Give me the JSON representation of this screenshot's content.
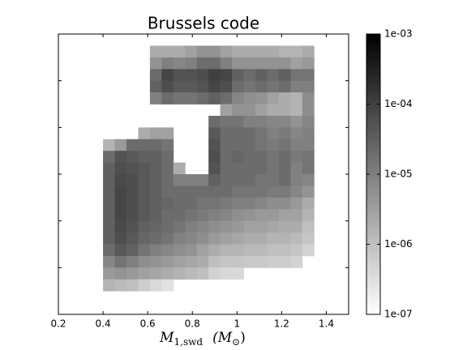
{
  "chart_data": {
    "type": "heatmap",
    "title": "Brussels code",
    "xlabel": [
      "M",
      "1,swd",
      "(M",
      "⊙",
      ")"
    ],
    "x_edges": [
      0.4,
      0.4525,
      0.505,
      0.5575,
      0.61,
      0.6625,
      0.715,
      0.7675,
      0.82,
      0.8725,
      0.925,
      0.9775,
      1.03,
      1.0825,
      1.135,
      1.1875,
      1.24,
      1.2925,
      1.345
    ],
    "y_edges": [
      23,
      22,
      21,
      20,
      19,
      18,
      17,
      16,
      15,
      14,
      13,
      12,
      11,
      10,
      9,
      8,
      7,
      6,
      5,
      4,
      3,
      2
    ],
    "z": [
      [
        null,
        null,
        null,
        null,
        2e-06,
        2e-06,
        2e-06,
        3e-06,
        5e-06,
        5e-06,
        3e-06,
        2e-06,
        2e-06,
        2e-06,
        2e-06,
        1.5e-06,
        1.5e-06,
        2e-06
      ],
      [
        null,
        null,
        null,
        null,
        5e-06,
        1e-05,
        8e-06,
        1e-05,
        2e-05,
        2e-05,
        1e-05,
        5e-06,
        5e-06,
        5e-06,
        5e-06,
        5e-06,
        3e-06,
        4e-06
      ],
      [
        null,
        null,
        null,
        null,
        2e-05,
        8e-05,
        5e-05,
        5e-05,
        6e-05,
        0.0001,
        8e-05,
        3e-05,
        2e-05,
        3e-05,
        2e-05,
        3e-05,
        1.5e-05,
        1.5e-05
      ],
      [
        null,
        null,
        null,
        null,
        3e-05,
        6e-05,
        4e-05,
        4e-05,
        5e-05,
        8e-05,
        6e-05,
        2e-05,
        1.5e-05,
        2e-05,
        1.5e-05,
        2e-05,
        1e-05,
        1e-05
      ],
      [
        null,
        null,
        null,
        null,
        1e-05,
        2e-05,
        1.5e-05,
        1.5e-05,
        2e-05,
        3e-05,
        2e-05,
        8e-06,
        6e-06,
        5e-06,
        3e-06,
        2e-06,
        1.5e-06,
        6e-06
      ],
      [
        null,
        null,
        null,
        null,
        null,
        null,
        null,
        null,
        null,
        null,
        3e-06,
        5e-06,
        5e-06,
        3e-06,
        2e-06,
        2e-06,
        1.5e-06,
        6e-06
      ],
      [
        null,
        null,
        null,
        null,
        null,
        null,
        null,
        null,
        null,
        2e-05,
        1.5e-05,
        1.5e-05,
        1e-05,
        1e-05,
        8e-06,
        8e-06,
        5e-06,
        8e-06
      ],
      [
        null,
        null,
        null,
        2e-06,
        3e-06,
        3e-06,
        null,
        null,
        null,
        4e-05,
        2e-05,
        2e-05,
        2e-05,
        1.5e-05,
        1e-05,
        1.2e-05,
        8e-06,
        1e-05
      ],
      [
        1.5e-06,
        4e-06,
        2e-05,
        2e-05,
        2e-05,
        1.5e-05,
        null,
        null,
        null,
        5e-05,
        2e-05,
        2e-05,
        2e-05,
        1.5e-05,
        1.2e-05,
        1.5e-05,
        1e-05,
        1e-05
      ],
      [
        2e-05,
        5e-05,
        4e-05,
        3e-05,
        3e-05,
        2e-05,
        null,
        null,
        null,
        6e-05,
        2e-05,
        2.5e-05,
        2e-05,
        2e-05,
        1.5e-05,
        2e-05,
        1.2e-05,
        1.5e-05
      ],
      [
        3e-05,
        6e-05,
        5e-05,
        4e-05,
        3e-05,
        2e-05,
        2e-06,
        null,
        null,
        5e-05,
        2e-05,
        2e-05,
        2e-05,
        2e-05,
        1.5e-05,
        2e-05,
        1e-05,
        1.5e-05
      ],
      [
        3e-05,
        7e-05,
        6e-05,
        4e-05,
        3e-05,
        2e-05,
        1e-05,
        1e-05,
        1e-05,
        3e-05,
        2e-05,
        2e-05,
        2e-05,
        1.5e-05,
        1.5e-05,
        2e-05,
        1e-05,
        8e-06
      ],
      [
        3e-05,
        8e-05,
        6e-05,
        4e-05,
        3e-05,
        2e-05,
        2e-05,
        2e-05,
        2e-05,
        2e-05,
        2e-05,
        1.5e-05,
        1.5e-05,
        1.5e-05,
        1.2e-05,
        1.2e-05,
        8e-06,
        5e-06
      ],
      [
        3e-05,
        8e-05,
        6e-05,
        4e-05,
        3e-05,
        2.5e-05,
        2e-05,
        2e-05,
        1.5e-05,
        1.5e-05,
        1.2e-05,
        1e-05,
        1e-05,
        8e-06,
        6e-06,
        6e-06,
        4e-06,
        2e-06
      ],
      [
        3e-05,
        8e-05,
        6e-05,
        4e-05,
        3e-05,
        2e-05,
        2e-05,
        1.5e-05,
        1.2e-05,
        1e-05,
        8e-06,
        6e-06,
        5e-06,
        4e-06,
        4e-06,
        3e-06,
        3e-06,
        1.5e-06
      ],
      [
        3e-05,
        7e-05,
        5e-05,
        3e-05,
        2.5e-05,
        2e-05,
        1.5e-05,
        1e-05,
        8e-06,
        6e-06,
        5e-06,
        4e-06,
        3e-06,
        3e-06,
        2.5e-06,
        2e-06,
        2e-06,
        1e-06
      ],
      [
        3e-05,
        6e-05,
        4e-05,
        2.5e-05,
        2e-05,
        1.5e-05,
        1e-05,
        8e-06,
        6e-06,
        4e-06,
        3e-06,
        2.5e-06,
        2e-06,
        2e-06,
        1.5e-06,
        1.5e-06,
        1.2e-06,
        8e-07
      ],
      [
        2e-05,
        4e-05,
        3e-05,
        1.5e-05,
        1e-05,
        8e-06,
        6e-06,
        5e-06,
        3e-06,
        2e-06,
        1.5e-06,
        1.5e-06,
        1.2e-06,
        1.2e-06,
        1e-06,
        1e-06,
        8e-07,
        5e-07
      ],
      [
        8e-06,
        1.5e-05,
        1e-05,
        6e-06,
        5e-06,
        4e-06,
        3e-06,
        2.5e-06,
        2e-06,
        1e-06,
        8e-07,
        8e-07,
        7e-07,
        7e-07,
        6e-07,
        6e-07,
        5e-07,
        null
      ],
      [
        4e-06,
        5e-06,
        4e-06,
        3e-06,
        2.5e-06,
        2e-06,
        1.5e-06,
        1.2e-06,
        1e-06,
        5e-07,
        4e-07,
        4e-07,
        null,
        null,
        null,
        null,
        null,
        null
      ],
      [
        1.5e-06,
        1.2e-06,
        1e-06,
        6e-07,
        4e-07,
        3e-07,
        null,
        null,
        null,
        null,
        null,
        null,
        null,
        null,
        null,
        null,
        null,
        null
      ]
    ],
    "xlim": [
      0.2,
      1.5
    ],
    "xticks": [
      0.2,
      0.4,
      0.6,
      0.8,
      1.0,
      1.2,
      1.4
    ],
    "ylim": [
      0,
      24
    ],
    "yticks": [
      4,
      8,
      12,
      16,
      20
    ],
    "colorbar": {
      "log": true,
      "lim": [
        1e-07,
        0.001
      ],
      "colors": [
        "#ffffff",
        "#000000"
      ],
      "ticks": [
        {
          "value": 1e-07,
          "label": "1e-07"
        },
        {
          "value": 1e-06,
          "label": "1e-06"
        },
        {
          "value": 1e-05,
          "label": "1e-05"
        },
        {
          "value": 0.0001,
          "label": "1e-04"
        },
        {
          "value": 0.001,
          "label": "1e-03"
        }
      ]
    }
  }
}
